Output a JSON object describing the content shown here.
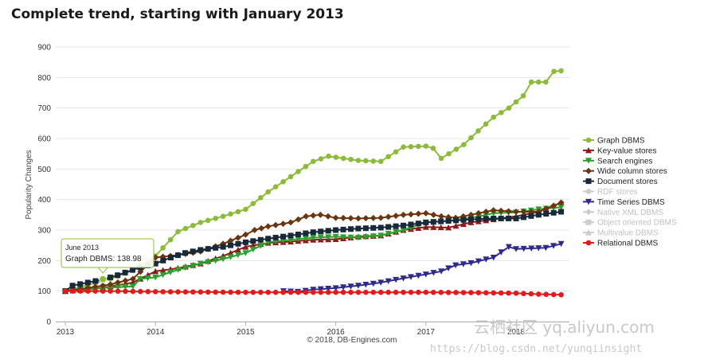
{
  "page": {
    "title": "Complete trend, starting with January 2013",
    "credit": "© 2018, DB-Engines.com"
  },
  "watermark": {
    "line1": "云栖社区 yq.aliyun.com",
    "line2": "https://blog.csdn.net/yunqiinsight"
  },
  "tooltip": {
    "date": "June 2013",
    "text": "Graph DBMS: 138.98",
    "value": 138.98,
    "x": 2013.4167
  },
  "chart_data": {
    "type": "line",
    "title": "Complete trend, starting with January 2013",
    "xlabel": "",
    "ylabel": "Popularity Changes",
    "xlim": [
      2012.96,
      2018.55
    ],
    "ylim": [
      0,
      900
    ],
    "yticks": [
      0,
      100,
      200,
      300,
      400,
      500,
      600,
      700,
      800,
      900
    ],
    "yticklabels": [
      "0",
      "100",
      "200",
      "300",
      "400",
      "500",
      "600",
      "700",
      "800",
      "900"
    ],
    "xticks": [
      2013,
      2014,
      2015,
      2016,
      2017,
      2018
    ],
    "xticklabels": [
      "2013",
      "2014",
      "2015",
      "2016",
      "2017",
      "2018"
    ],
    "grid": "horizontal",
    "legend_position": "right",
    "series": [
      {
        "name": "Graph DBMS",
        "color": "#8cbb3a",
        "marker": "circle",
        "active": true,
        "points": [
          [
            2013.0,
            100
          ],
          [
            2013.5,
            140
          ],
          [
            2013.75,
            168
          ],
          [
            2014.0,
            215
          ],
          [
            2014.25,
            295
          ],
          [
            2014.5,
            325
          ],
          [
            2014.75,
            345
          ],
          [
            2015.0,
            368
          ],
          [
            2015.25,
            425
          ],
          [
            2015.5,
            475
          ],
          [
            2015.75,
            525
          ],
          [
            2015.92,
            542
          ],
          [
            2016.25,
            528
          ],
          [
            2016.5,
            525
          ],
          [
            2016.75,
            572
          ],
          [
            2017.0,
            575
          ],
          [
            2017.08,
            568
          ],
          [
            2017.17,
            535
          ],
          [
            2017.42,
            580
          ],
          [
            2017.58,
            625
          ],
          [
            2017.75,
            670
          ],
          [
            2017.92,
            700
          ],
          [
            2018.08,
            740
          ],
          [
            2018.17,
            785
          ],
          [
            2018.33,
            785
          ],
          [
            2018.42,
            820
          ],
          [
            2018.5,
            822
          ]
        ]
      },
      {
        "name": "Key-value stores",
        "color": "#8b1a1a",
        "marker": "triangle-up",
        "active": true,
        "points": [
          [
            2013.0,
            100
          ],
          [
            2013.25,
            105
          ],
          [
            2013.5,
            115
          ],
          [
            2013.75,
            128
          ],
          [
            2014.0,
            165
          ],
          [
            2014.25,
            175
          ],
          [
            2014.5,
            190
          ],
          [
            2014.75,
            215
          ],
          [
            2015.0,
            245
          ],
          [
            2015.25,
            258
          ],
          [
            2015.5,
            262
          ],
          [
            2015.75,
            268
          ],
          [
            2016.0,
            270
          ],
          [
            2016.25,
            278
          ],
          [
            2016.5,
            282
          ],
          [
            2016.75,
            300
          ],
          [
            2017.0,
            310
          ],
          [
            2017.25,
            308
          ],
          [
            2017.5,
            325
          ],
          [
            2017.75,
            335
          ],
          [
            2018.0,
            345
          ],
          [
            2018.25,
            360
          ],
          [
            2018.5,
            390
          ]
        ]
      },
      {
        "name": "Search engines",
        "color": "#2ca02c",
        "marker": "triangle-down",
        "active": true,
        "points": [
          [
            2013.0,
            100
          ],
          [
            2013.25,
            106
          ],
          [
            2013.5,
            112
          ],
          [
            2013.75,
            115
          ],
          [
            2013.83,
            140
          ],
          [
            2014.0,
            145
          ],
          [
            2014.25,
            170
          ],
          [
            2014.5,
            190
          ],
          [
            2014.75,
            205
          ],
          [
            2015.0,
            225
          ],
          [
            2015.25,
            260
          ],
          [
            2015.5,
            268
          ],
          [
            2015.75,
            275
          ],
          [
            2016.0,
            278
          ],
          [
            2016.25,
            275
          ],
          [
            2016.5,
            282
          ],
          [
            2016.75,
            300
          ],
          [
            2017.0,
            325
          ],
          [
            2017.25,
            330
          ],
          [
            2017.5,
            340
          ],
          [
            2017.75,
            355
          ],
          [
            2018.0,
            358
          ],
          [
            2018.25,
            368
          ],
          [
            2018.5,
            375
          ]
        ]
      },
      {
        "name": "Wide column stores",
        "color": "#6b3510",
        "marker": "diamond",
        "active": true,
        "points": [
          [
            2013.0,
            100
          ],
          [
            2013.25,
            110
          ],
          [
            2013.5,
            122
          ],
          [
            2013.75,
            140
          ],
          [
            2014.0,
            210
          ],
          [
            2014.25,
            218
          ],
          [
            2014.5,
            230
          ],
          [
            2014.75,
            255
          ],
          [
            2015.0,
            285
          ],
          [
            2015.1,
            300
          ],
          [
            2015.25,
            312
          ],
          [
            2015.5,
            325
          ],
          [
            2015.67,
            345
          ],
          [
            2015.83,
            350
          ],
          [
            2016.0,
            340
          ],
          [
            2016.25,
            338
          ],
          [
            2016.5,
            340
          ],
          [
            2016.75,
            350
          ],
          [
            2017.0,
            355
          ],
          [
            2017.17,
            345
          ],
          [
            2017.33,
            340
          ],
          [
            2017.5,
            350
          ],
          [
            2017.75,
            365
          ],
          [
            2018.0,
            360
          ],
          [
            2018.25,
            360
          ],
          [
            2018.5,
            390
          ]
        ]
      },
      {
        "name": "Document stores",
        "color": "#17293a",
        "marker": "square",
        "active": true,
        "points": [
          [
            2013.0,
            100
          ],
          [
            2013.08,
            118
          ],
          [
            2013.25,
            128
          ],
          [
            2013.42,
            138
          ],
          [
            2013.58,
            152
          ],
          [
            2013.83,
            178
          ],
          [
            2014.0,
            190
          ],
          [
            2014.17,
            210
          ],
          [
            2014.33,
            225
          ],
          [
            2014.5,
            235
          ],
          [
            2014.75,
            245
          ],
          [
            2015.0,
            260
          ],
          [
            2015.25,
            272
          ],
          [
            2015.5,
            282
          ],
          [
            2015.75,
            293
          ],
          [
            2016.0,
            300
          ],
          [
            2016.25,
            305
          ],
          [
            2016.5,
            308
          ],
          [
            2016.75,
            315
          ],
          [
            2017.0,
            325
          ],
          [
            2017.25,
            330
          ],
          [
            2017.5,
            335
          ],
          [
            2017.75,
            338
          ],
          [
            2018.0,
            338
          ],
          [
            2018.25,
            350
          ],
          [
            2018.5,
            360
          ]
        ]
      },
      {
        "name": "RDF stores",
        "color": "#cccccc",
        "marker": "circle",
        "active": false,
        "points": []
      },
      {
        "name": "Time Series DBMS",
        "color": "#2f2a8c",
        "marker": "triangle-down",
        "active": true,
        "points": [
          [
            2015.42,
            100
          ],
          [
            2015.58,
            98
          ],
          [
            2015.75,
            105
          ],
          [
            2016.0,
            110
          ],
          [
            2016.25,
            118
          ],
          [
            2016.5,
            128
          ],
          [
            2016.75,
            142
          ],
          [
            2017.0,
            155
          ],
          [
            2017.17,
            165
          ],
          [
            2017.33,
            185
          ],
          [
            2017.5,
            192
          ],
          [
            2017.75,
            210
          ],
          [
            2017.92,
            245
          ],
          [
            2018.0,
            238
          ],
          [
            2018.17,
            240
          ],
          [
            2018.33,
            242
          ],
          [
            2018.5,
            255
          ]
        ]
      },
      {
        "name": "Native XML DBMS",
        "color": "#cccccc",
        "marker": "diamond",
        "active": false,
        "points": []
      },
      {
        "name": "Object oriented DBMS",
        "color": "#cccccc",
        "marker": "square",
        "active": false,
        "points": []
      },
      {
        "name": "Multivalue DBMS",
        "color": "#cccccc",
        "marker": "triangle-up",
        "active": false,
        "points": []
      },
      {
        "name": "Relational DBMS",
        "color": "#e31a1c",
        "marker": "circle",
        "active": true,
        "points": [
          [
            2013.0,
            100
          ],
          [
            2013.5,
            100
          ],
          [
            2014.0,
            98
          ],
          [
            2014.5,
            97
          ],
          [
            2015.0,
            96
          ],
          [
            2015.5,
            96
          ],
          [
            2016.0,
            96
          ],
          [
            2016.5,
            96
          ],
          [
            2017.0,
            96
          ],
          [
            2017.5,
            95
          ],
          [
            2018.0,
            93
          ],
          [
            2018.25,
            90
          ],
          [
            2018.5,
            88
          ]
        ]
      }
    ]
  }
}
